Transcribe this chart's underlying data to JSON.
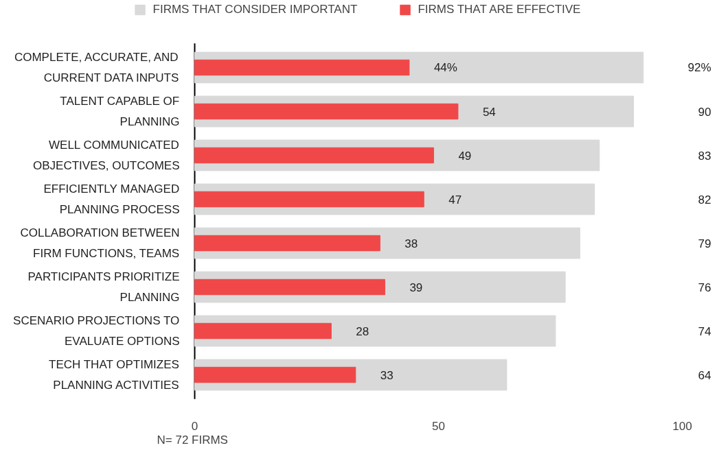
{
  "chart_data": {
    "type": "bar",
    "orientation": "horizontal",
    "categories": [
      "COMPLETE, ACCURATE, AND CURRENT DATA INPUTS",
      "TALENT CAPABLE OF PLANNING",
      "WELL COMMUNICATED OBJECTIVES, OUTCOMES",
      "EFFICIENTLY MANAGED PLANNING PROCESS",
      "COLLABORATION BETWEEN FIRM FUNCTIONS, TEAMS",
      "PARTICIPANTS PRIORITIZE PLANNING",
      "SCENARIO PROJECTIONS TO EVALUATE OPTIONS",
      "TECH THAT OPTIMIZES PLANNING ACTIVITIES"
    ],
    "series": [
      {
        "name": "FIRMS THAT CONSIDER IMPORTANT",
        "color": "#d9d9d9",
        "values": [
          92,
          90,
          83,
          82,
          79,
          76,
          74,
          64
        ],
        "value_labels": [
          "92%",
          "90",
          "83",
          "82",
          "79",
          "76",
          "74",
          "64"
        ]
      },
      {
        "name": "FIRMS THAT ARE EFFECTIVE",
        "color": "#f04848",
        "values": [
          44,
          54,
          49,
          47,
          38,
          39,
          28,
          33
        ],
        "value_labels": [
          "44%",
          "54",
          "49",
          "47",
          "38",
          "39",
          "28",
          "33"
        ]
      }
    ],
    "xlim": [
      0,
      100
    ],
    "xticks": [
      0,
      50,
      100
    ],
    "grid": false,
    "legend": "top",
    "annotations": [
      "N= 72 FIRMS"
    ]
  }
}
